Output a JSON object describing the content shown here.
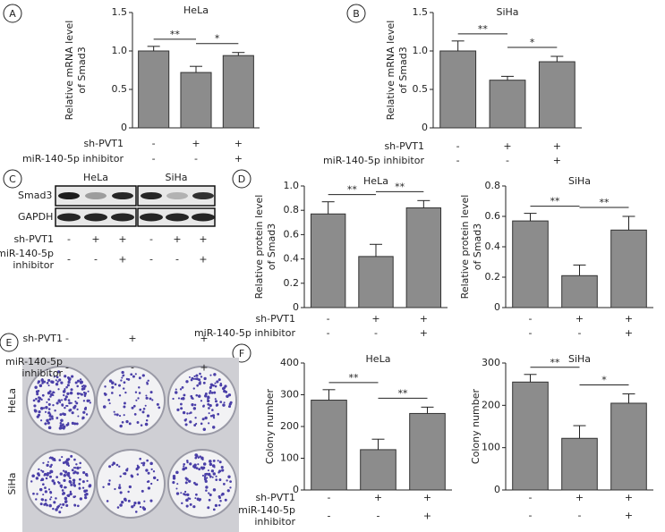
{
  "panel_labels": [
    "A",
    "B",
    "C",
    "D",
    "E",
    "F"
  ],
  "chart_data": [
    {
      "type": "bar",
      "title": "HeLa",
      "y_label": [
        "Relative mRNA level",
        "of Smad3"
      ],
      "color": "#8c8c8c",
      "values": [
        1.0,
        0.72,
        0.94
      ],
      "errors": [
        0.06,
        0.08,
        0.04
      ],
      "ylim": [
        0,
        1.5
      ],
      "yticks": [
        0,
        0.5,
        {
          "value": 1,
          "label": "1.0"
        },
        1.5
      ],
      "conditions": [
        {
          "label": [
            "sh-PVT1"
          ],
          "signs": [
            "-",
            "+",
            "+"
          ]
        },
        {
          "label": [
            "miR-140-5p inhibitor"
          ],
          "signs": [
            "-",
            "-",
            "+"
          ]
        }
      ],
      "significance": [
        {
          "text": "**",
          "between": [
            0,
            1
          ]
        },
        {
          "text": "*",
          "between": [
            1,
            2
          ]
        }
      ]
    },
    {
      "type": "bar",
      "title": "SiHa",
      "y_label": [
        "Relative mRNA level",
        "of Smad3"
      ],
      "color": "#8c8c8c",
      "values": [
        1.0,
        0.62,
        0.86
      ],
      "errors": [
        0.13,
        0.05,
        0.07
      ],
      "ylim": [
        0,
        1.5
      ],
      "yticks": [
        0,
        0.5,
        {
          "value": 1,
          "label": "1.0"
        },
        1.5
      ],
      "conditions": [
        {
          "label": [
            "sh-PVT1"
          ],
          "signs": [
            "-",
            "+",
            "+"
          ]
        },
        {
          "label": [
            "miR-140-5p inhibitor"
          ],
          "signs": [
            "-",
            "-",
            "+"
          ]
        }
      ],
      "significance": [
        {
          "text": "**",
          "between": [
            0,
            1
          ]
        },
        {
          "text": "*",
          "between": [
            1,
            2
          ]
        }
      ]
    },
    {
      "type": "bar",
      "title": "HeLa",
      "y_label": [
        "Relative protein level",
        "of Smad3"
      ],
      "color": "#8c8c8c",
      "values": [
        0.77,
        0.42,
        0.82
      ],
      "errors": [
        0.1,
        0.1,
        0.06
      ],
      "ylim": [
        0,
        1
      ],
      "yticks": [
        0,
        0.2,
        0.4,
        0.6,
        0.8,
        {
          "value": 1,
          "label": "1.0"
        }
      ],
      "conditions": [
        {
          "label": [
            "sh-PVT1"
          ],
          "signs": [
            "-",
            "+",
            "+"
          ]
        },
        {
          "label": [
            "miR-140-5p inhibitor"
          ],
          "signs": [
            "-",
            "-",
            "+"
          ]
        }
      ],
      "significance": [
        {
          "text": "**",
          "between": [
            0,
            1
          ]
        },
        {
          "text": "**",
          "between": [
            1,
            2
          ]
        }
      ]
    },
    {
      "type": "bar",
      "title": "SiHa",
      "y_label": [
        "Relative protein level",
        "of Smad3"
      ],
      "color": "#8c8c8c",
      "values": [
        0.57,
        0.21,
        0.51
      ],
      "errors": [
        0.05,
        0.07,
        0.09
      ],
      "ylim": [
        0,
        0.8
      ],
      "yticks": [
        0,
        0.2,
        0.4,
        0.6,
        0.8
      ],
      "conditions": [
        {
          "signs": [
            "-",
            "+",
            "+"
          ]
        },
        {
          "signs": [
            "-",
            "-",
            "+"
          ]
        }
      ],
      "significance": [
        {
          "text": "**",
          "between": [
            0,
            1
          ]
        },
        {
          "text": "**",
          "between": [
            1,
            2
          ]
        }
      ]
    },
    {
      "type": "bar",
      "title": "HeLa",
      "y_label": [
        "Colony number"
      ],
      "color": "#8c8c8c",
      "values": [
        283,
        127,
        241
      ],
      "errors": [
        33,
        33,
        20
      ],
      "ylim": [
        0,
        400
      ],
      "yticks": [
        0,
        100,
        200,
        300,
        400
      ],
      "conditions": [
        {
          "label": [
            "sh-PVT1"
          ],
          "signs": [
            "-",
            "+",
            "+"
          ]
        },
        {
          "label": [
            "miR-140-5p",
            "inhibitor"
          ],
          "signs": [
            "-",
            "-",
            "+"
          ]
        }
      ],
      "significance": [
        {
          "text": "**",
          "between": [
            0,
            1
          ]
        },
        {
          "text": "**",
          "between": [
            1,
            2
          ]
        }
      ]
    },
    {
      "type": "bar",
      "title": "SiHa",
      "y_label": [
        "Colony number"
      ],
      "color": "#8c8c8c",
      "values": [
        255,
        122,
        205
      ],
      "errors": [
        18,
        30,
        22
      ],
      "ylim": [
        0,
        300
      ],
      "yticks": [
        0,
        100,
        200,
        300
      ],
      "conditions": [
        {
          "signs": [
            "-",
            "+",
            "+"
          ]
        },
        {
          "signs": [
            "-",
            "-",
            "+"
          ]
        }
      ],
      "significance": [
        {
          "text": "**",
          "between": [
            0,
            1
          ]
        },
        {
          "text": "*",
          "between": [
            1,
            2
          ]
        }
      ]
    }
  ],
  "blot": {
    "cell_lines": [
      "HeLa",
      "SiHa"
    ],
    "proteins": [
      "Smad3",
      "GAPDH"
    ],
    "conditions": [
      {
        "label": [
          "sh-PVT1"
        ],
        "signs": [
          "-",
          "+",
          "+",
          "-",
          "+",
          "+"
        ]
      },
      {
        "label": [
          "miR-140-5p",
          "inhibitor"
        ],
        "signs": [
          "-",
          "-",
          "+",
          "-",
          "-",
          "+"
        ]
      }
    ]
  },
  "colony": {
    "cell_lines": [
      "HeLa",
      "SiHa"
    ],
    "conditions": [
      {
        "label": [
          "sh-PVT1"
        ],
        "signs": [
          "-",
          "+",
          "+"
        ]
      },
      {
        "label": [
          "miR-140-5p",
          "inhibitor"
        ],
        "signs": [
          "-",
          "-",
          "+"
        ]
      }
    ]
  }
}
